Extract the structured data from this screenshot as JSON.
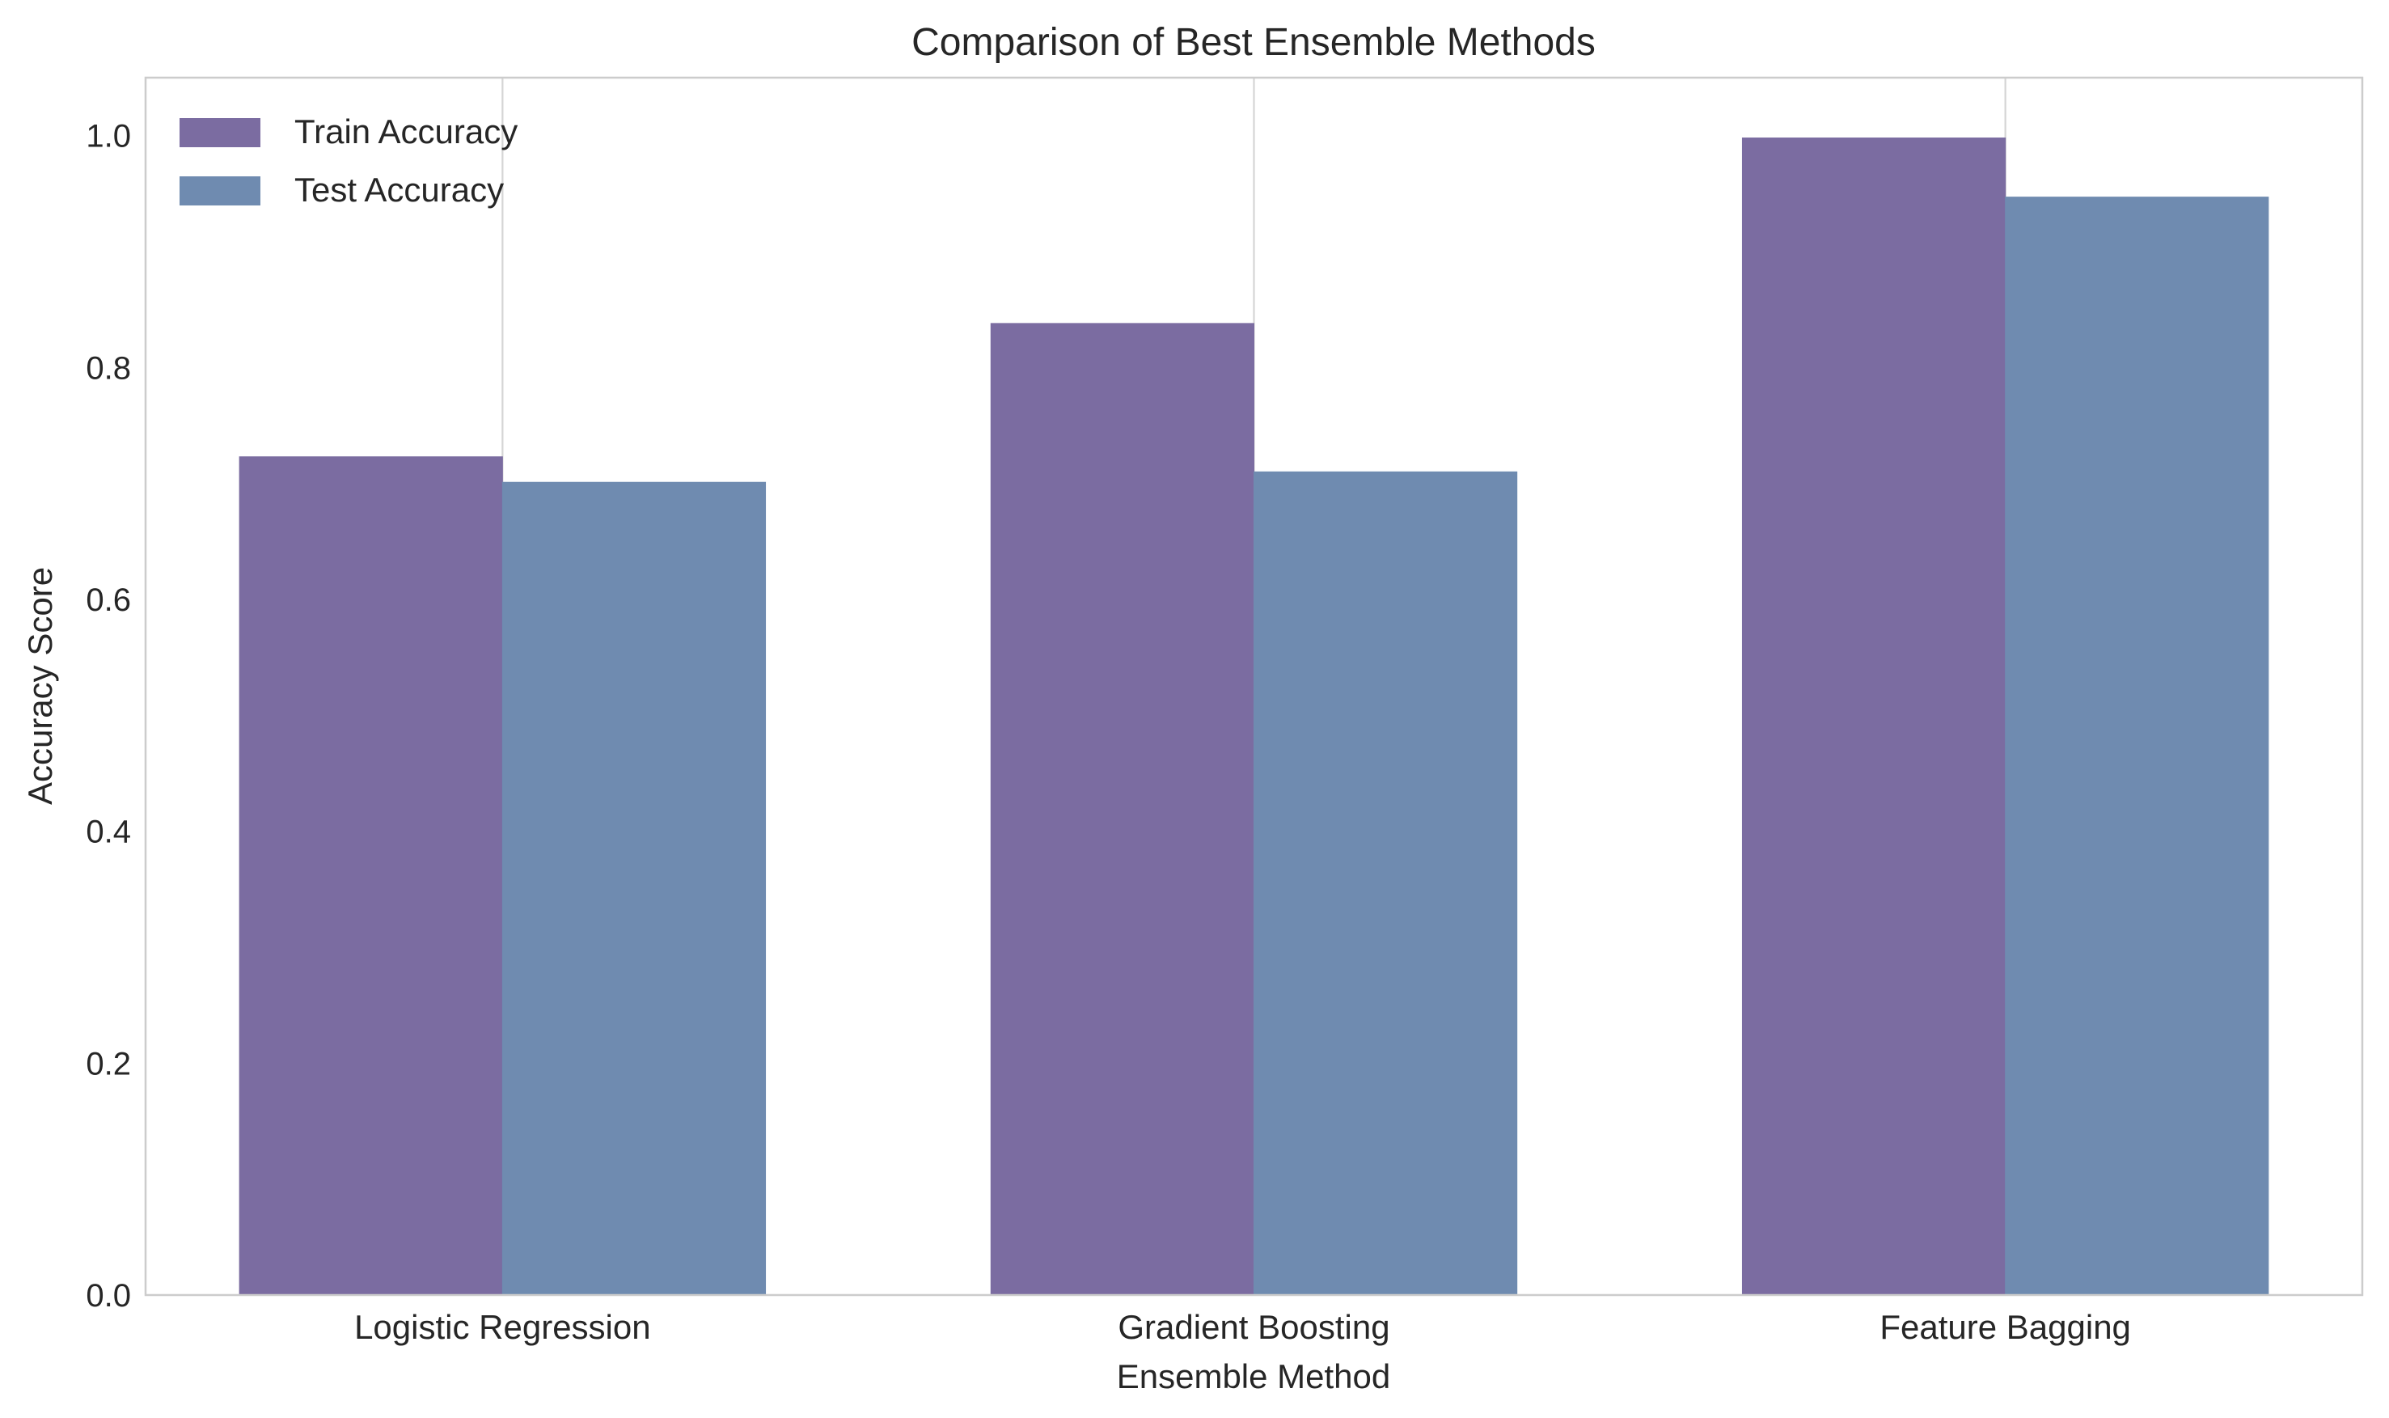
{
  "chart_data": {
    "type": "bar",
    "title": "Comparison of Best Ensemble Methods",
    "xlabel": "Ensemble Method",
    "ylabel": "Accuracy Score",
    "categories": [
      "Logistic Regression",
      "Gradient Boosting",
      "Feature Bagging"
    ],
    "series": [
      {
        "name": "Train Accuracy",
        "values": [
          0.723,
          0.838,
          0.998
        ],
        "color": "#7b6ca1"
      },
      {
        "name": "Test Accuracy",
        "values": [
          0.701,
          0.71,
          0.947
        ],
        "color": "#6f8bb0"
      }
    ],
    "ylim": [
      0,
      1.05
    ],
    "yticks": [
      0.0,
      0.2,
      0.4,
      0.6,
      0.8,
      1.0
    ],
    "ytick_labels": [
      "0.0",
      "0.2",
      "0.4",
      "0.6",
      "0.8",
      "1.0"
    ],
    "grid": true,
    "legend_position": "top-left"
  }
}
